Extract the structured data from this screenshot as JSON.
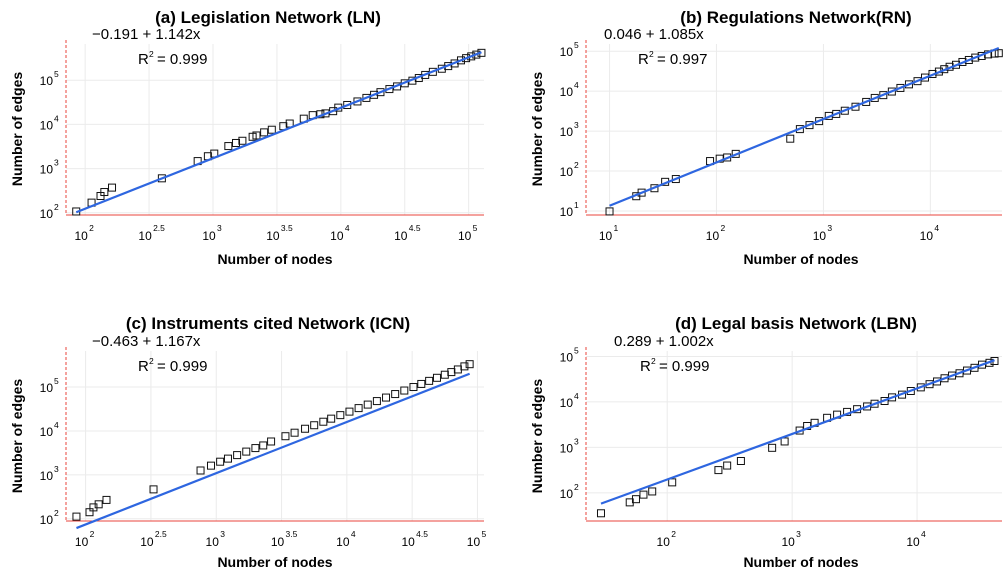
{
  "chart_data": [
    {
      "id": "ln",
      "type": "scatter",
      "title": "(a) Legislation Network (LN)",
      "xlabel": "Number of nodes",
      "ylabel": "Number of edges",
      "scale": "log10",
      "xlim_log10": [
        1.85,
        5.12
      ],
      "ylim_log10": [
        1.95,
        5.82
      ],
      "x_ticks": [
        {
          "base": "10",
          "exp": "2",
          "v": 2
        },
        {
          "base": "10",
          "exp": "2.5",
          "v": 2.5
        },
        {
          "base": "10",
          "exp": "3",
          "v": 3
        },
        {
          "base": "10",
          "exp": "3.5",
          "v": 3.5
        },
        {
          "base": "10",
          "exp": "4",
          "v": 4
        },
        {
          "base": "10",
          "exp": "4.5",
          "v": 4.5
        },
        {
          "base": "10",
          "exp": "5",
          "v": 5
        }
      ],
      "y_ticks": [
        {
          "base": "10",
          "exp": "2",
          "v": 2
        },
        {
          "base": "10",
          "exp": "3",
          "v": 3
        },
        {
          "base": "10",
          "exp": "4",
          "v": 4
        },
        {
          "base": "10",
          "exp": "5",
          "v": 5
        }
      ],
      "fit": {
        "intercept": -0.191,
        "slope": 1.142,
        "equation": "−0.191 + 1.142x",
        "r2_prefix": "R",
        "r2_exp": "2",
        "r2_value": "= 0.999"
      },
      "points_log10": [
        [
          1.93,
          2.03
        ],
        [
          2.05,
          2.23
        ],
        [
          2.12,
          2.38
        ],
        [
          2.15,
          2.47
        ],
        [
          2.21,
          2.57
        ],
        [
          2.6,
          2.78
        ],
        [
          2.88,
          3.17
        ],
        [
          2.96,
          3.28
        ],
        [
          3.01,
          3.34
        ],
        [
          3.12,
          3.51
        ],
        [
          3.18,
          3.58
        ],
        [
          3.23,
          3.63
        ],
        [
          3.31,
          3.72
        ],
        [
          3.34,
          3.75
        ],
        [
          3.4,
          3.82
        ],
        [
          3.46,
          3.88
        ],
        [
          3.55,
          3.96
        ],
        [
          3.6,
          4.02
        ],
        [
          3.71,
          4.13
        ],
        [
          3.78,
          4.21
        ],
        [
          3.84,
          4.23
        ],
        [
          3.88,
          4.25
        ],
        [
          3.94,
          4.3
        ],
        [
          3.98,
          4.38
        ],
        [
          4.05,
          4.44
        ],
        [
          4.13,
          4.52
        ],
        [
          4.2,
          4.6
        ],
        [
          4.26,
          4.67
        ],
        [
          4.31,
          4.73
        ],
        [
          4.38,
          4.8
        ],
        [
          4.44,
          4.86
        ],
        [
          4.5,
          4.93
        ],
        [
          4.56,
          4.99
        ],
        [
          4.61,
          5.05
        ],
        [
          4.66,
          5.12
        ],
        [
          4.72,
          5.19
        ],
        [
          4.79,
          5.26
        ],
        [
          4.84,
          5.32
        ],
        [
          4.89,
          5.38
        ],
        [
          4.94,
          5.45
        ],
        [
          4.98,
          5.5
        ],
        [
          5.02,
          5.54
        ],
        [
          5.06,
          5.58
        ],
        [
          5.1,
          5.62
        ]
      ]
    },
    {
      "id": "rn",
      "type": "scatter",
      "title": "(b) Regulations Network(RN)",
      "xlabel": "Number of nodes",
      "ylabel": "Number of edges",
      "scale": "log10",
      "xlim_log10": [
        0.78,
        4.67
      ],
      "ylim_log10": [
        0.9,
        5.18
      ],
      "x_ticks": [
        {
          "base": "10",
          "exp": "1",
          "v": 1
        },
        {
          "base": "10",
          "exp": "2",
          "v": 2
        },
        {
          "base": "10",
          "exp": "3",
          "v": 3
        },
        {
          "base": "10",
          "exp": "4",
          "v": 4
        }
      ],
      "y_ticks": [
        {
          "base": "10",
          "exp": "1",
          "v": 1
        },
        {
          "base": "10",
          "exp": "2",
          "v": 2
        },
        {
          "base": "10",
          "exp": "3",
          "v": 3
        },
        {
          "base": "10",
          "exp": "4",
          "v": 4
        },
        {
          "base": "10",
          "exp": "5",
          "v": 5
        }
      ],
      "fit": {
        "intercept": 0.046,
        "slope": 1.085,
        "equation": "0.046 + 1.085x",
        "r2_prefix": "R",
        "r2_exp": "2",
        "r2_value": "= 0.997"
      },
      "points_log10": [
        [
          1.0,
          0.99
        ],
        [
          1.25,
          1.37
        ],
        [
          1.3,
          1.46
        ],
        [
          1.42,
          1.57
        ],
        [
          1.52,
          1.73
        ],
        [
          1.62,
          1.8
        ],
        [
          1.94,
          2.25
        ],
        [
          2.03,
          2.31
        ],
        [
          2.1,
          2.34
        ],
        [
          2.18,
          2.43
        ],
        [
          2.69,
          2.81
        ],
        [
          2.78,
          3.05
        ],
        [
          2.87,
          3.15
        ],
        [
          2.96,
          3.25
        ],
        [
          3.05,
          3.38
        ],
        [
          3.12,
          3.43
        ],
        [
          3.2,
          3.51
        ],
        [
          3.3,
          3.61
        ],
        [
          3.4,
          3.73
        ],
        [
          3.48,
          3.83
        ],
        [
          3.56,
          3.9
        ],
        [
          3.64,
          3.99
        ],
        [
          3.72,
          4.08
        ],
        [
          3.8,
          4.17
        ],
        [
          3.88,
          4.25
        ],
        [
          3.95,
          4.34
        ],
        [
          4.02,
          4.43
        ],
        [
          4.08,
          4.49
        ],
        [
          4.13,
          4.55
        ],
        [
          4.18,
          4.61
        ],
        [
          4.24,
          4.66
        ],
        [
          4.3,
          4.73
        ],
        [
          4.36,
          4.78
        ],
        [
          4.42,
          4.84
        ],
        [
          4.48,
          4.88
        ],
        [
          4.54,
          4.92
        ],
        [
          4.6,
          4.94
        ],
        [
          4.64,
          4.95
        ]
      ]
    },
    {
      "id": "icn",
      "type": "scatter",
      "title": "(c) Instruments cited Network (ICN)",
      "xlabel": "Number of nodes",
      "ylabel": "Number of edges",
      "scale": "log10",
      "xlim_log10": [
        1.85,
        5.05
      ],
      "ylim_log10": [
        1.95,
        5.82
      ],
      "x_ticks": [
        {
          "base": "10",
          "exp": "2",
          "v": 2
        },
        {
          "base": "10",
          "exp": "2.5",
          "v": 2.5
        },
        {
          "base": "10",
          "exp": "3",
          "v": 3
        },
        {
          "base": "10",
          "exp": "3.5",
          "v": 3.5
        },
        {
          "base": "10",
          "exp": "4",
          "v": 4
        },
        {
          "base": "10",
          "exp": "4.5",
          "v": 4.5
        },
        {
          "base": "10",
          "exp": "5",
          "v": 5
        }
      ],
      "y_ticks": [
        {
          "base": "10",
          "exp": "2",
          "v": 2
        },
        {
          "base": "10",
          "exp": "3",
          "v": 3
        },
        {
          "base": "10",
          "exp": "4",
          "v": 4
        },
        {
          "base": "10",
          "exp": "5",
          "v": 5
        }
      ],
      "fit": {
        "intercept": -0.463,
        "slope": 1.167,
        "equation": "−0.463 + 1.167x",
        "r2_prefix": "R",
        "r2_exp": "2",
        "r2_value": "= 0.999"
      },
      "points_log10": [
        [
          1.93,
          2.05
        ],
        [
          2.03,
          2.15
        ],
        [
          2.06,
          2.26
        ],
        [
          2.1,
          2.33
        ],
        [
          2.16,
          2.43
        ],
        [
          2.52,
          2.67
        ],
        [
          2.88,
          3.1
        ],
        [
          2.96,
          3.21
        ],
        [
          3.03,
          3.3
        ],
        [
          3.09,
          3.37
        ],
        [
          3.16,
          3.45
        ],
        [
          3.23,
          3.53
        ],
        [
          3.3,
          3.61
        ],
        [
          3.36,
          3.67
        ],
        [
          3.42,
          3.76
        ],
        [
          3.53,
          3.88
        ],
        [
          3.6,
          3.96
        ],
        [
          3.68,
          4.05
        ],
        [
          3.75,
          4.13
        ],
        [
          3.82,
          4.21
        ],
        [
          3.88,
          4.28
        ],
        [
          3.95,
          4.36
        ],
        [
          4.02,
          4.44
        ],
        [
          4.09,
          4.52
        ],
        [
          4.16,
          4.6
        ],
        [
          4.23,
          4.68
        ],
        [
          4.3,
          4.76
        ],
        [
          4.37,
          4.84
        ],
        [
          4.44,
          4.92
        ],
        [
          4.51,
          5.0
        ],
        [
          4.57,
          5.07
        ],
        [
          4.63,
          5.14
        ],
        [
          4.69,
          5.21
        ],
        [
          4.75,
          5.28
        ],
        [
          4.8,
          5.34
        ],
        [
          4.85,
          5.4
        ],
        [
          4.9,
          5.47
        ],
        [
          4.94,
          5.52
        ]
      ]
    },
    {
      "id": "lbn",
      "type": "scatter",
      "title": "(d) Legal basis Network (LBN)",
      "xlabel": "Number of nodes",
      "ylabel": "Number of edges",
      "scale": "log10",
      "xlim_log10": [
        1.35,
        4.68
      ],
      "ylim_log10": [
        1.38,
        5.12
      ],
      "x_ticks": [
        {
          "base": "10",
          "exp": "2",
          "v": 2
        },
        {
          "base": "10",
          "exp": "3",
          "v": 3
        },
        {
          "base": "10",
          "exp": "4",
          "v": 4
        }
      ],
      "y_ticks": [
        {
          "base": "10",
          "exp": "2",
          "v": 2
        },
        {
          "base": "10",
          "exp": "3",
          "v": 3
        },
        {
          "base": "10",
          "exp": "4",
          "v": 4
        },
        {
          "base": "10",
          "exp": "5",
          "v": 5
        }
      ],
      "fit": {
        "intercept": 0.289,
        "slope": 1.002,
        "equation": "0.289 + 1.002x",
        "r2_prefix": "R",
        "r2_exp": "2",
        "r2_value": "= 0.999"
      },
      "points_log10": [
        [
          1.47,
          1.55
        ],
        [
          1.7,
          1.79
        ],
        [
          1.75,
          1.86
        ],
        [
          1.81,
          1.96
        ],
        [
          1.88,
          2.03
        ],
        [
          2.04,
          2.23
        ],
        [
          2.41,
          2.5
        ],
        [
          2.48,
          2.6
        ],
        [
          2.59,
          2.7
        ],
        [
          2.84,
          2.99
        ],
        [
          2.94,
          3.13
        ],
        [
          3.06,
          3.37
        ],
        [
          3.12,
          3.47
        ],
        [
          3.18,
          3.54
        ],
        [
          3.28,
          3.65
        ],
        [
          3.36,
          3.72
        ],
        [
          3.44,
          3.78
        ],
        [
          3.52,
          3.84
        ],
        [
          3.6,
          3.9
        ],
        [
          3.66,
          3.96
        ],
        [
          3.74,
          4.02
        ],
        [
          3.8,
          4.1
        ],
        [
          3.88,
          4.16
        ],
        [
          3.95,
          4.24
        ],
        [
          4.03,
          4.32
        ],
        [
          4.1,
          4.39
        ],
        [
          4.16,
          4.45
        ],
        [
          4.22,
          4.52
        ],
        [
          4.28,
          4.58
        ],
        [
          4.34,
          4.63
        ],
        [
          4.4,
          4.69
        ],
        [
          4.46,
          4.75
        ],
        [
          4.52,
          4.82
        ],
        [
          4.58,
          4.86
        ],
        [
          4.62,
          4.9
        ]
      ]
    }
  ]
}
